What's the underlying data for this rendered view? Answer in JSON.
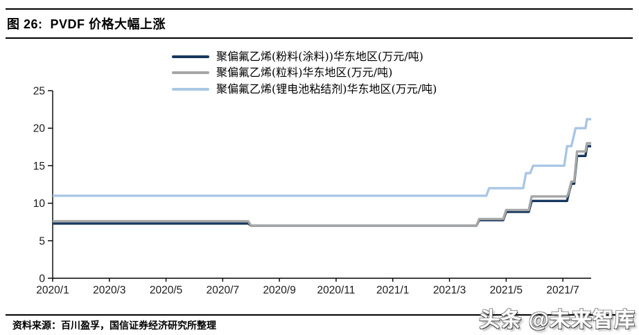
{
  "header": {
    "title": "图 26:  PVDF 价格大幅上涨"
  },
  "footer": {
    "source": "资料来源：百川盈孚，国信证券经济研究所整理",
    "watermark": "头条 @未来智库"
  },
  "chart_data": {
    "type": "line",
    "step_style": true,
    "title": "PVDF 价格大幅上涨",
    "xlabel": "",
    "ylabel": "万元/吨",
    "ylim": [
      0,
      25
    ],
    "y_ticks": [
      0,
      5,
      10,
      15,
      20,
      25
    ],
    "grid": false,
    "legend_position": "top-center",
    "x_unit": "months since 2020/1",
    "xlim_months": [
      0,
      19
    ],
    "x_ticks": [
      {
        "month": 0,
        "label": "2020/1"
      },
      {
        "month": 2,
        "label": "2020/3"
      },
      {
        "month": 4,
        "label": "2020/5"
      },
      {
        "month": 6,
        "label": "2020/7"
      },
      {
        "month": 8,
        "label": "2020/9"
      },
      {
        "month": 10,
        "label": "2020/11"
      },
      {
        "month": 12,
        "label": "2021/1"
      },
      {
        "month": 14,
        "label": "2021/3"
      },
      {
        "month": 16,
        "label": "2021/5"
      },
      {
        "month": 18,
        "label": "2021/7"
      }
    ],
    "axis_color": "#000000",
    "tick_label_color": "#1a1a1a",
    "series": [
      {
        "name": "聚偏氟乙烯(粉料(涂料))华东地区(万元/吨)",
        "color": "#17375E",
        "points": [
          [
            0,
            7.3
          ],
          [
            6.9,
            7.3
          ],
          [
            7.0,
            7.0
          ],
          [
            14.95,
            7.0
          ],
          [
            15.05,
            7.75
          ],
          [
            15.9,
            7.75
          ],
          [
            16.0,
            8.85
          ],
          [
            16.8,
            8.85
          ],
          [
            16.9,
            10.3
          ],
          [
            18.15,
            10.3
          ],
          [
            18.2,
            11.2
          ],
          [
            18.3,
            12.6
          ],
          [
            18.4,
            12.6
          ],
          [
            18.5,
            16.3
          ],
          [
            18.8,
            16.3
          ],
          [
            18.85,
            17.6
          ],
          [
            19,
            17.6
          ]
        ]
      },
      {
        "name": "聚偏氟乙烯(粒料)华东地区(万元/吨)",
        "color": "#A6A6A6",
        "points": [
          [
            0,
            7.6
          ],
          [
            6.9,
            7.6
          ],
          [
            7.0,
            7.0
          ],
          [
            14.95,
            7.0
          ],
          [
            15.05,
            7.9
          ],
          [
            15.9,
            7.9
          ],
          [
            16.0,
            9.1
          ],
          [
            16.8,
            9.1
          ],
          [
            16.9,
            10.9
          ],
          [
            18.15,
            10.9
          ],
          [
            18.2,
            11.4
          ],
          [
            18.3,
            12.9
          ],
          [
            18.4,
            12.9
          ],
          [
            18.5,
            16.9
          ],
          [
            18.8,
            16.9
          ],
          [
            18.85,
            18.0
          ],
          [
            19,
            18.0
          ]
        ]
      },
      {
        "name": "聚偏氟乙烯(锂电池粘结剂)华东地区(万元/吨)",
        "color": "#A9C6E4",
        "points": [
          [
            0,
            11
          ],
          [
            15.3,
            11
          ],
          [
            15.4,
            12
          ],
          [
            16.6,
            12
          ],
          [
            16.7,
            14
          ],
          [
            16.85,
            14
          ],
          [
            16.95,
            15
          ],
          [
            18.05,
            15
          ],
          [
            18.15,
            17.6
          ],
          [
            18.3,
            17.6
          ],
          [
            18.45,
            20
          ],
          [
            18.8,
            20
          ],
          [
            18.85,
            21.2
          ],
          [
            19,
            21.2
          ]
        ]
      }
    ]
  }
}
